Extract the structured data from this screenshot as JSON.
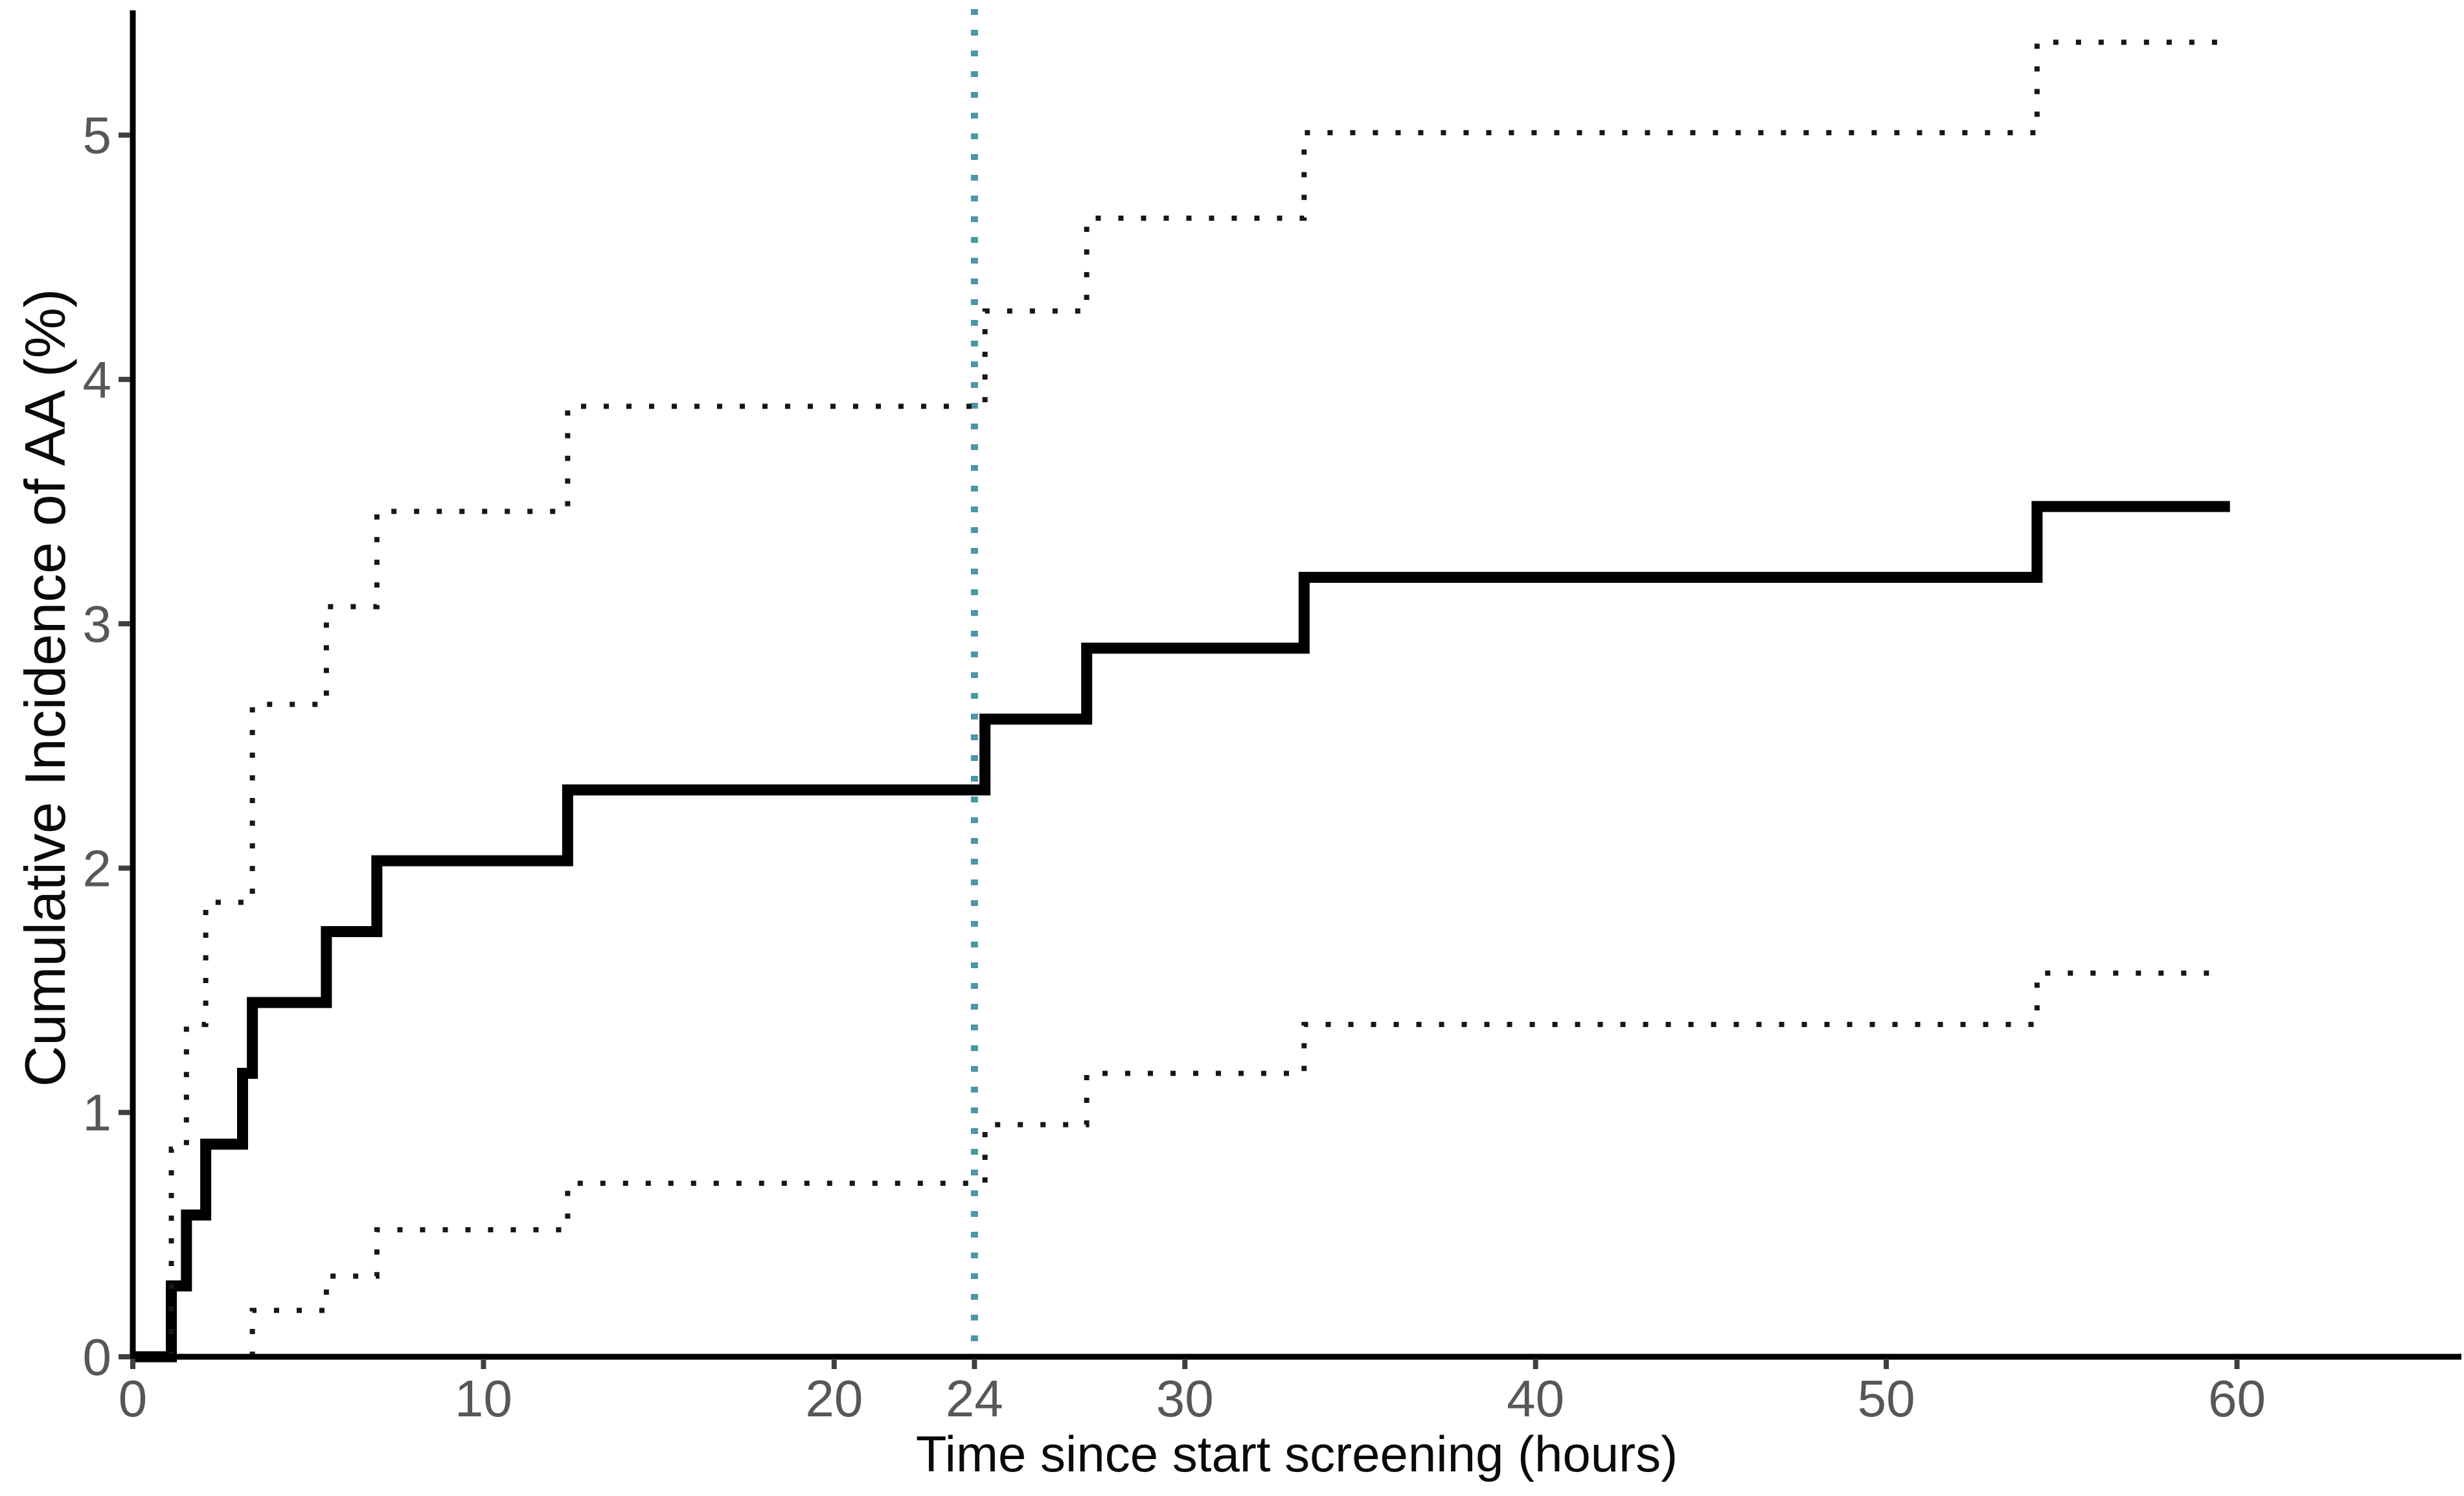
{
  "chart_data": {
    "type": "line",
    "line_style": "step-after",
    "title": "",
    "xlabel": "Time since start screening (hours)",
    "ylabel": "Cumulative Incidence of AA (%)",
    "x_ticks": [
      0,
      10,
      20,
      24,
      30,
      40,
      50,
      60
    ],
    "y_ticks": [
      0,
      1,
      2,
      3,
      4,
      5
    ],
    "xlim": [
      0,
      66.4
    ],
    "ylim": [
      0,
      5.5
    ],
    "grid": false,
    "legend_position": "none",
    "vertical_reference_line_x": 24,
    "series": [
      {
        "name": "cumulative incidence estimate",
        "role": "estimate",
        "style": "solid",
        "color": "#000000",
        "start_x": 0,
        "end_x": 59.8,
        "steps": [
          [
            1.1,
            0.29
          ],
          [
            1.53,
            0.58
          ],
          [
            2.08,
            0.87
          ],
          [
            3.13,
            1.16
          ],
          [
            3.41,
            1.45
          ],
          [
            5.52,
            1.74
          ],
          [
            6.96,
            2.03
          ],
          [
            12.4,
            2.32
          ],
          [
            24.3,
            2.61
          ],
          [
            27.2,
            2.9
          ],
          [
            33.4,
            3.19
          ],
          [
            54.3,
            3.48
          ]
        ]
      },
      {
        "name": "upper confidence band (dotted)",
        "role": "ci-upper",
        "style": "dotted",
        "color": "#161616",
        "start_x": 1.1,
        "end_x": 59.7,
        "steps": [
          [
            1.1,
            0.85
          ],
          [
            1.53,
            1.36
          ],
          [
            2.08,
            1.86
          ],
          [
            3.41,
            2.67
          ],
          [
            5.52,
            3.07
          ],
          [
            6.96,
            3.46
          ],
          [
            12.4,
            3.89
          ],
          [
            24.3,
            4.28
          ],
          [
            27.2,
            4.66
          ],
          [
            33.4,
            5.01
          ],
          [
            54.3,
            5.38
          ]
        ]
      },
      {
        "name": "lower confidence band (dotted)",
        "role": "ci-lower",
        "style": "dotted",
        "color": "#161616",
        "start_x": 3.41,
        "end_x": 59.7,
        "steps": [
          [
            3.41,
            0.19
          ],
          [
            5.52,
            0.33
          ],
          [
            6.96,
            0.52
          ],
          [
            12.4,
            0.71
          ],
          [
            24.3,
            0.95
          ],
          [
            27.2,
            1.16
          ],
          [
            33.4,
            1.36
          ],
          [
            54.3,
            1.57
          ]
        ]
      }
    ],
    "colors": {
      "axis": "#000000",
      "tick_label": "#575757",
      "axis_title": "#0a0a0a",
      "estimate_line": "#000000",
      "ci_line": "#161616",
      "reference_line": "#4e95a8",
      "background": "#ffffff"
    }
  }
}
